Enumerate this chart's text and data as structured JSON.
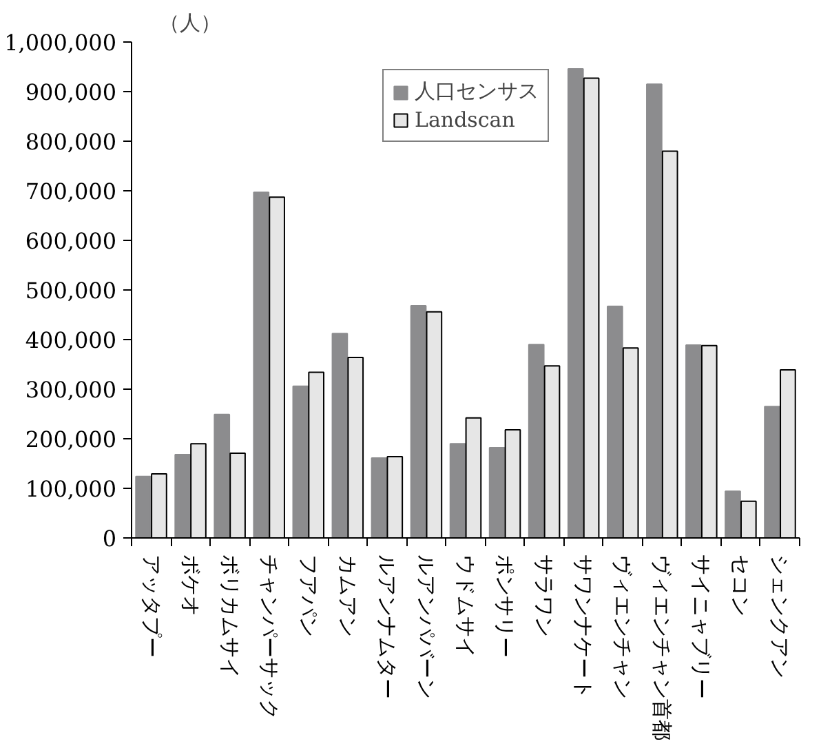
{
  "chart_data": {
    "type": "bar",
    "ylabel": "（人）",
    "categories": [
      "アッタプー",
      "ボケオ",
      "ボリカムサイ",
      "チャンパーサック",
      "フアパン",
      "カムアン",
      "ルアンナムター",
      "ルアンパバーン",
      "ウドムサイ",
      "ポンサリー",
      "サラワン",
      "サワンナケート",
      "ヴィエンチャン",
      "ヴィエンチャン首都",
      "サイニャブリー",
      "セコン",
      "シェンクアン"
    ],
    "series": [
      {
        "name": "人口センサス",
        "color": "#8c8c8e",
        "values": [
          124000,
          168000,
          249000,
          697000,
          306000,
          412000,
          161000,
          468000,
          190000,
          182000,
          390000,
          946000,
          467000,
          915000,
          389000,
          94000,
          265000
        ]
      },
      {
        "name": "Landscan",
        "color": "#e6e6e6",
        "values": [
          129000,
          190000,
          171000,
          687000,
          334000,
          364000,
          164000,
          456000,
          242000,
          218000,
          347000,
          927000,
          383000,
          780000,
          388000,
          74000,
          339000
        ]
      }
    ],
    "ylim": [
      0,
      1000000
    ],
    "yticks": [
      0,
      {
        "value": 100000,
        "label": "100,000"
      },
      {
        "value": 200000,
        "label": "200,000"
      },
      {
        "value": 300000,
        "label": "300,000"
      },
      {
        "value": 400000,
        "label": "400,000"
      },
      {
        "value": 500000,
        "label": "500,000"
      },
      {
        "value": 600000,
        "label": "600,000"
      },
      {
        "value": 700000,
        "label": "700,000"
      },
      {
        "value": 800000,
        "label": "800,000"
      },
      {
        "value": 900000,
        "label": "900,000"
      },
      {
        "value": 1000000,
        "label": "1,000,000"
      }
    ],
    "grid": false,
    "legend": "top"
  }
}
